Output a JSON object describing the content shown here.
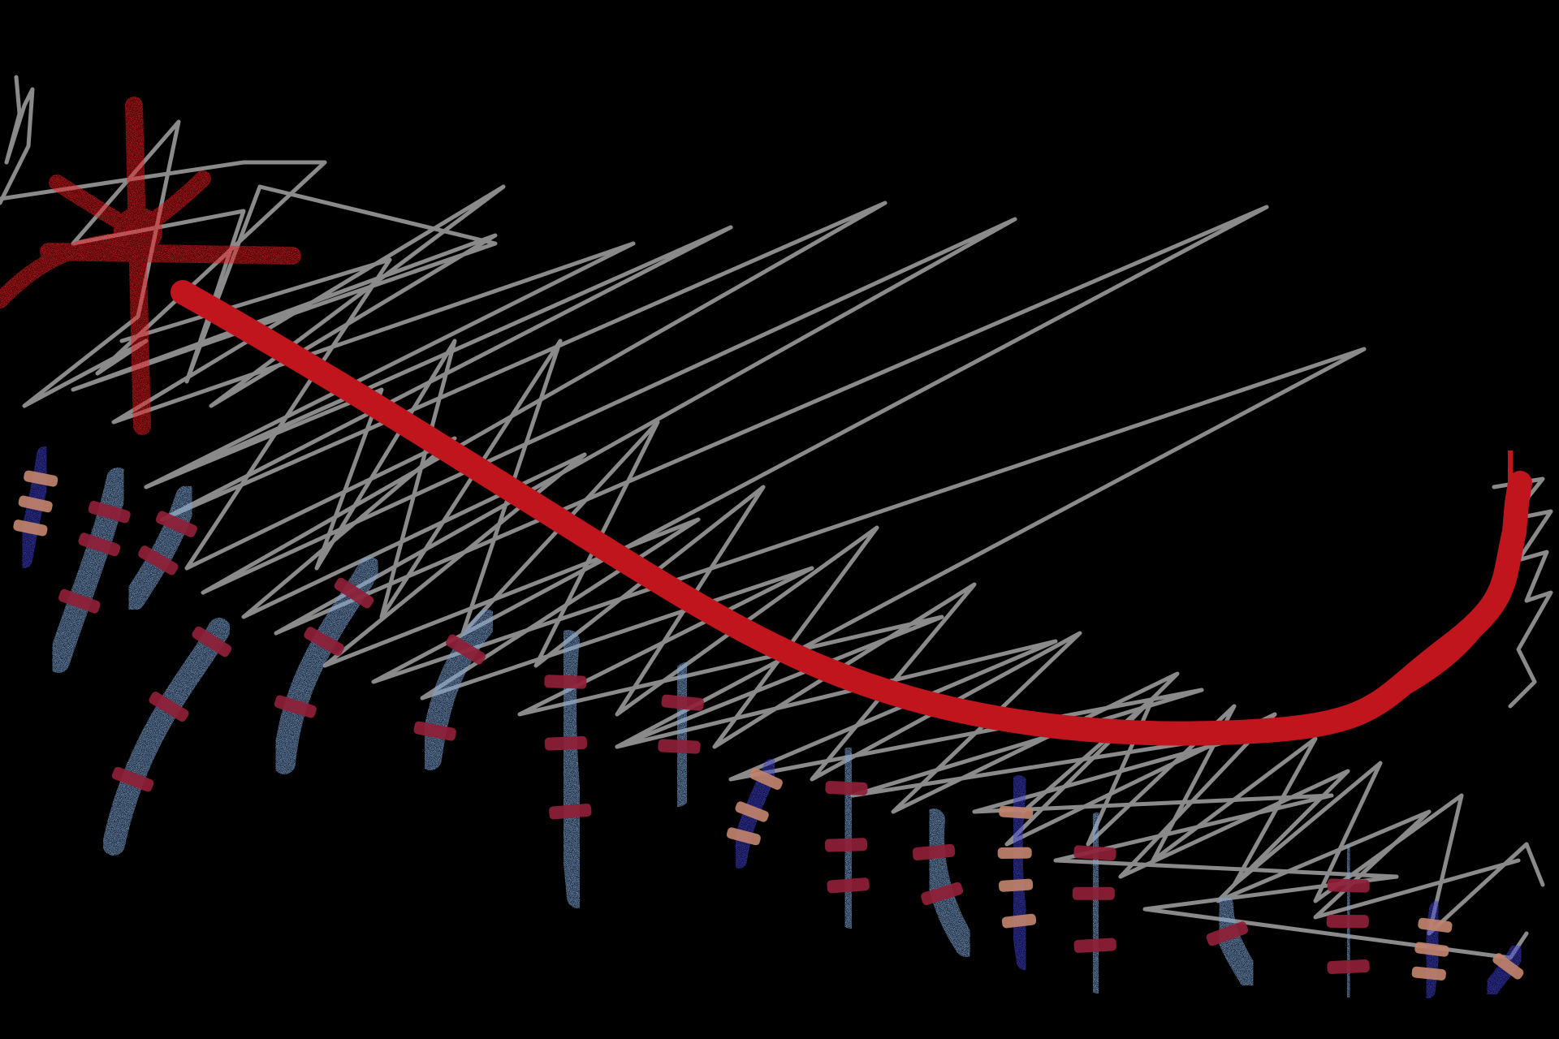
{
  "scene": {
    "kind": "abstract-drawing",
    "colors": {
      "background": "#000000",
      "scribble": "#8a8a8a",
      "main_stroke": "#c0151c",
      "star": "#e81b1f",
      "segment_light": "#7fa6d8",
      "segment_dark": "#3d3fcf",
      "band_dark": "#8f1f38",
      "band_tan": "#c0826c"
    },
    "icons": [
      "red-star-icon"
    ],
    "segments": [
      {
        "name": "segment-1",
        "tone": "dark",
        "bands": "tan"
      },
      {
        "name": "segment-2",
        "tone": "light",
        "bands": "dark"
      },
      {
        "name": "segment-3",
        "tone": "light",
        "bands": "dark"
      },
      {
        "name": "segment-4",
        "tone": "light",
        "bands": "dark"
      },
      {
        "name": "segment-5",
        "tone": "light",
        "bands": "dark"
      },
      {
        "name": "segment-6",
        "tone": "light",
        "bands": "dark"
      },
      {
        "name": "segment-7",
        "tone": "light",
        "bands": "dark"
      },
      {
        "name": "segment-8",
        "tone": "light",
        "bands": "dark"
      },
      {
        "name": "segment-9",
        "tone": "dark",
        "bands": "tan"
      },
      {
        "name": "segment-10",
        "tone": "light",
        "bands": "dark"
      },
      {
        "name": "segment-11",
        "tone": "light",
        "bands": "dark"
      },
      {
        "name": "segment-12",
        "tone": "dark",
        "bands": "tan"
      },
      {
        "name": "segment-13",
        "tone": "light",
        "bands": "dark"
      },
      {
        "name": "segment-14",
        "tone": "light",
        "bands": "dark"
      },
      {
        "name": "segment-15",
        "tone": "light",
        "bands": "dark"
      },
      {
        "name": "segment-16",
        "tone": "dark",
        "bands": "tan"
      },
      {
        "name": "segment-17",
        "tone": "dark",
        "bands": "tan"
      }
    ]
  }
}
